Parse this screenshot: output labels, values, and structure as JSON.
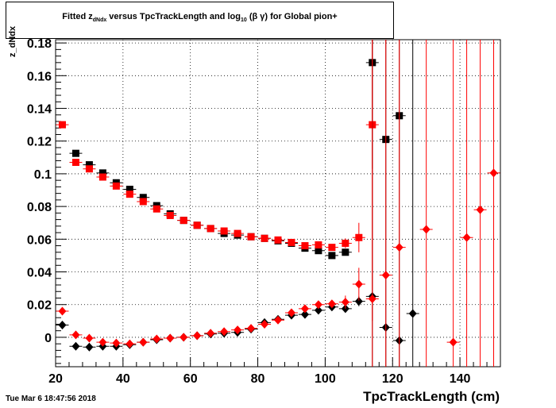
{
  "chart_data": {
    "type": "scatter",
    "title": "Fitted  z",
    "title_sub": "dNdx",
    "title_mid": "  versus TpcTrackLength and log",
    "title_sub2": "10",
    "title_end": " (β γ) for Global pion+",
    "xlabel": "TpcTrackLength (cm)",
    "ylabel": "z_dNdx",
    "timestamp": "Tue Mar  6 18:47:56 2018",
    "xlim": [
      20,
      152
    ],
    "ylim": [
      -0.018,
      0.182
    ],
    "x_ticks": [
      20,
      40,
      60,
      80,
      100,
      120,
      140
    ],
    "x_tick_labels": [
      "20",
      "40",
      "60",
      "80",
      "100",
      "120",
      "140"
    ],
    "y_ticks": [
      0,
      0.02,
      0.04,
      0.06,
      0.08,
      0.1,
      0.12,
      0.14,
      0.16,
      0.18
    ],
    "y_tick_labels": [
      "0",
      "0.02",
      "0.04",
      "0.06",
      "0.08",
      "0.1",
      "0.12",
      "0.14",
      "0.16",
      "0.18"
    ],
    "grid": true,
    "series": [
      {
        "marker": "square",
        "color": "#000000",
        "points": [
          [
            26,
            0.1125
          ],
          [
            30,
            0.1055
          ],
          [
            34,
            0.1005
          ],
          [
            38,
            0.0945
          ],
          [
            42,
            0.0905
          ],
          [
            46,
            0.0855
          ],
          [
            50,
            0.0805
          ],
          [
            54,
            0.0755
          ],
          [
            58,
            0.0715
          ],
          [
            62,
            0.0685
          ],
          [
            66,
            0.0665
          ],
          [
            70,
            0.0635
          ],
          [
            74,
            0.0625
          ],
          [
            78,
            0.0615
          ],
          [
            82,
            0.0605
          ],
          [
            86,
            0.059
          ],
          [
            90,
            0.0575
          ],
          [
            94,
            0.0545
          ],
          [
            98,
            0.053
          ],
          [
            102,
            0.05
          ],
          [
            106,
            0.052
          ],
          [
            114,
            0.168
          ],
          [
            118,
            0.121
          ],
          [
            122,
            0.1355
          ]
        ],
        "yerr": [
          0,
          0,
          0,
          0,
          0,
          0,
          0,
          0,
          0,
          0,
          0,
          0,
          0,
          0,
          0,
          0,
          0,
          0,
          0,
          0,
          0,
          0.065,
          0,
          0
        ]
      },
      {
        "marker": "square",
        "color": "#ff0000",
        "points": [
          [
            22,
            0.13
          ],
          [
            26,
            0.107
          ],
          [
            30,
            0.103
          ],
          [
            34,
            0.098
          ],
          [
            38,
            0.0925
          ],
          [
            42,
            0.0875
          ],
          [
            46,
            0.083
          ],
          [
            50,
            0.0785
          ],
          [
            54,
            0.0745
          ],
          [
            58,
            0.0715
          ],
          [
            62,
            0.0685
          ],
          [
            66,
            0.0665
          ],
          [
            70,
            0.065
          ],
          [
            74,
            0.0635
          ],
          [
            78,
            0.0615
          ],
          [
            82,
            0.0605
          ],
          [
            86,
            0.0595
          ],
          [
            90,
            0.058
          ],
          [
            94,
            0.056
          ],
          [
            98,
            0.0565
          ],
          [
            102,
            0.055
          ],
          [
            106,
            0.0575
          ],
          [
            110,
            0.061
          ],
          [
            114,
            0.13
          ]
        ],
        "yerr": [
          0,
          0,
          0,
          0,
          0,
          0,
          0,
          0,
          0,
          0,
          0,
          0,
          0,
          0,
          0,
          0,
          0,
          0,
          0,
          0,
          0,
          0.003,
          0.009,
          0.12
        ]
      },
      {
        "marker": "diamond",
        "color": "#000000",
        "points": [
          [
            22,
            0.0075
          ],
          [
            26,
            -0.0055
          ],
          [
            30,
            -0.006
          ],
          [
            34,
            -0.0055
          ],
          [
            38,
            -0.0055
          ],
          [
            42,
            -0.0045
          ],
          [
            46,
            -0.003
          ],
          [
            50,
            -0.0015
          ],
          [
            54,
            -0.0005
          ],
          [
            58,
            0.0
          ],
          [
            62,
            0.001
          ],
          [
            66,
            0.002
          ],
          [
            70,
            0.0025
          ],
          [
            74,
            0.003
          ],
          [
            78,
            0.005
          ],
          [
            82,
            0.009
          ],
          [
            86,
            0.011
          ],
          [
            90,
            0.0135
          ],
          [
            94,
            0.014
          ],
          [
            98,
            0.0165
          ],
          [
            102,
            0.0185
          ],
          [
            106,
            0.0175
          ],
          [
            110,
            0.022
          ],
          [
            114,
            0.025
          ],
          [
            118,
            0.006
          ],
          [
            122,
            -0.002
          ],
          [
            126,
            0.0145
          ]
        ],
        "yerr": [
          0,
          0,
          0,
          0,
          0,
          0,
          0,
          0,
          0,
          0,
          0,
          0,
          0,
          0,
          0,
          0,
          0,
          0,
          0,
          0,
          0,
          0,
          0.003,
          0.5,
          0.5,
          0.5,
          0.5
        ]
      },
      {
        "marker": "diamond",
        "color": "#ff0000",
        "points": [
          [
            22,
            0.016
          ],
          [
            26,
            0.0015
          ],
          [
            30,
            -0.0005
          ],
          [
            34,
            -0.003
          ],
          [
            38,
            -0.0035
          ],
          [
            42,
            -0.004
          ],
          [
            46,
            -0.003
          ],
          [
            50,
            -0.001
          ],
          [
            54,
            -0.0005
          ],
          [
            58,
            0.0
          ],
          [
            62,
            0.001
          ],
          [
            66,
            0.0025
          ],
          [
            70,
            0.0035
          ],
          [
            74,
            0.0045
          ],
          [
            78,
            0.0055
          ],
          [
            82,
            0.008
          ],
          [
            86,
            0.0105
          ],
          [
            90,
            0.015
          ],
          [
            94,
            0.0175
          ],
          [
            98,
            0.02
          ],
          [
            102,
            0.0205
          ],
          [
            106,
            0.0215
          ],
          [
            110,
            0.0325
          ],
          [
            114,
            0.0235
          ],
          [
            118,
            0.038
          ],
          [
            122,
            0.055
          ],
          [
            130,
            0.066
          ],
          [
            138,
            -0.003
          ],
          [
            142,
            0.061
          ],
          [
            146,
            0.078
          ],
          [
            150,
            0.1005
          ]
        ],
        "yerr": [
          0,
          0,
          0,
          0,
          0,
          0,
          0,
          0,
          0,
          0,
          0,
          0,
          0,
          0,
          0,
          0,
          0,
          0,
          0,
          0,
          0,
          0.004,
          0.01,
          0.5,
          0.5,
          0.5,
          0.5,
          0.5,
          0.5,
          0.5,
          0.5
        ]
      }
    ]
  }
}
